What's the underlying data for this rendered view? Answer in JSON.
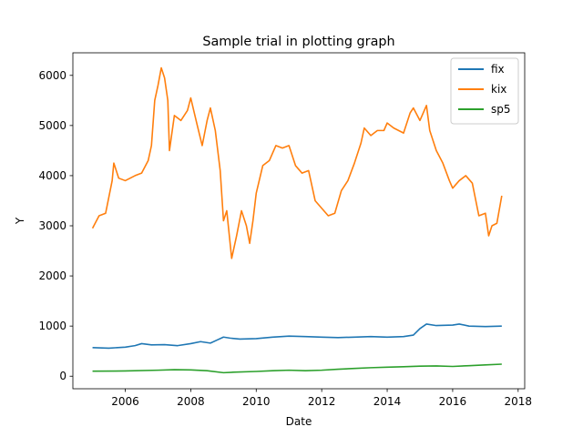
{
  "chart_data": {
    "type": "line",
    "title": "Sample trial in plotting graph",
    "xlabel": "Date",
    "ylabel": "Y",
    "xlim": [
      2004.4,
      2018.2
    ],
    "ylim": [
      -250,
      6450
    ],
    "x_ticks": [
      2006,
      2008,
      2010,
      2012,
      2014,
      2016,
      2018
    ],
    "y_ticks": [
      0,
      1000,
      2000,
      3000,
      4000,
      5000,
      6000
    ],
    "grid": false,
    "legend_position": "top-right",
    "series": [
      {
        "name": "fix",
        "color": "#1f77b4",
        "points": [
          [
            2005.0,
            570
          ],
          [
            2005.5,
            560
          ],
          [
            2006.0,
            580
          ],
          [
            2006.3,
            610
          ],
          [
            2006.5,
            650
          ],
          [
            2006.8,
            625
          ],
          [
            2007.2,
            630
          ],
          [
            2007.6,
            610
          ],
          [
            2008.0,
            650
          ],
          [
            2008.3,
            690
          ],
          [
            2008.6,
            660
          ],
          [
            2008.8,
            720
          ],
          [
            2009.0,
            780
          ],
          [
            2009.2,
            760
          ],
          [
            2009.5,
            740
          ],
          [
            2010.0,
            750
          ],
          [
            2010.5,
            780
          ],
          [
            2011.0,
            800
          ],
          [
            2011.5,
            790
          ],
          [
            2012.0,
            780
          ],
          [
            2012.5,
            770
          ],
          [
            2013.0,
            780
          ],
          [
            2013.5,
            790
          ],
          [
            2014.0,
            780
          ],
          [
            2014.5,
            790
          ],
          [
            2014.8,
            820
          ],
          [
            2015.0,
            950
          ],
          [
            2015.2,
            1040
          ],
          [
            2015.5,
            1010
          ],
          [
            2016.0,
            1020
          ],
          [
            2016.2,
            1040
          ],
          [
            2016.5,
            1000
          ],
          [
            2017.0,
            990
          ],
          [
            2017.5,
            1000
          ]
        ]
      },
      {
        "name": "kix",
        "color": "#ff7f0e",
        "points": [
          [
            2005.0,
            2950
          ],
          [
            2005.2,
            3200
          ],
          [
            2005.4,
            3250
          ],
          [
            2005.6,
            3900
          ],
          [
            2005.65,
            4250
          ],
          [
            2005.8,
            3950
          ],
          [
            2006.0,
            3900
          ],
          [
            2006.3,
            4000
          ],
          [
            2006.5,
            4050
          ],
          [
            2006.7,
            4300
          ],
          [
            2006.8,
            4600
          ],
          [
            2006.9,
            5500
          ],
          [
            2007.0,
            5800
          ],
          [
            2007.1,
            6150
          ],
          [
            2007.2,
            5950
          ],
          [
            2007.3,
            5500
          ],
          [
            2007.35,
            4500
          ],
          [
            2007.5,
            5200
          ],
          [
            2007.7,
            5100
          ],
          [
            2007.9,
            5300
          ],
          [
            2008.0,
            5550
          ],
          [
            2008.2,
            5000
          ],
          [
            2008.35,
            4600
          ],
          [
            2008.5,
            5100
          ],
          [
            2008.6,
            5350
          ],
          [
            2008.75,
            4900
          ],
          [
            2008.9,
            4100
          ],
          [
            2009.0,
            3100
          ],
          [
            2009.1,
            3300
          ],
          [
            2009.25,
            2350
          ],
          [
            2009.4,
            2800
          ],
          [
            2009.55,
            3300
          ],
          [
            2009.7,
            3000
          ],
          [
            2009.8,
            2650
          ],
          [
            2009.9,
            3100
          ],
          [
            2010.0,
            3650
          ],
          [
            2010.2,
            4200
          ],
          [
            2010.4,
            4300
          ],
          [
            2010.6,
            4600
          ],
          [
            2010.8,
            4550
          ],
          [
            2011.0,
            4600
          ],
          [
            2011.2,
            4200
          ],
          [
            2011.4,
            4050
          ],
          [
            2011.6,
            4100
          ],
          [
            2011.8,
            3500
          ],
          [
            2012.0,
            3350
          ],
          [
            2012.2,
            3200
          ],
          [
            2012.4,
            3250
          ],
          [
            2012.6,
            3700
          ],
          [
            2012.8,
            3900
          ],
          [
            2013.0,
            4250
          ],
          [
            2013.2,
            4650
          ],
          [
            2013.3,
            4950
          ],
          [
            2013.5,
            4800
          ],
          [
            2013.7,
            4900
          ],
          [
            2013.9,
            4900
          ],
          [
            2014.0,
            5050
          ],
          [
            2014.2,
            4950
          ],
          [
            2014.5,
            4850
          ],
          [
            2014.7,
            5250
          ],
          [
            2014.8,
            5350
          ],
          [
            2015.0,
            5100
          ],
          [
            2015.2,
            5400
          ],
          [
            2015.3,
            4900
          ],
          [
            2015.5,
            4500
          ],
          [
            2015.7,
            4250
          ],
          [
            2015.9,
            3900
          ],
          [
            2016.0,
            3750
          ],
          [
            2016.2,
            3900
          ],
          [
            2016.4,
            4000
          ],
          [
            2016.6,
            3850
          ],
          [
            2016.8,
            3200
          ],
          [
            2017.0,
            3250
          ],
          [
            2017.1,
            2800
          ],
          [
            2017.2,
            3000
          ],
          [
            2017.35,
            3050
          ],
          [
            2017.5,
            3600
          ]
        ]
      },
      {
        "name": "sp5",
        "color": "#2ca02c",
        "points": [
          [
            2005.0,
            100
          ],
          [
            2006.0,
            105
          ],
          [
            2007.0,
            120
          ],
          [
            2007.5,
            130
          ],
          [
            2008.0,
            125
          ],
          [
            2008.5,
            110
          ],
          [
            2009.0,
            70
          ],
          [
            2009.3,
            80
          ],
          [
            2010.0,
            95
          ],
          [
            2010.5,
            110
          ],
          [
            2011.0,
            120
          ],
          [
            2011.5,
            110
          ],
          [
            2012.0,
            120
          ],
          [
            2012.5,
            140
          ],
          [
            2013.0,
            155
          ],
          [
            2013.5,
            170
          ],
          [
            2014.0,
            180
          ],
          [
            2014.5,
            190
          ],
          [
            2015.0,
            200
          ],
          [
            2015.5,
            205
          ],
          [
            2016.0,
            195
          ],
          [
            2016.5,
            210
          ],
          [
            2017.0,
            225
          ],
          [
            2017.5,
            240
          ]
        ]
      }
    ]
  }
}
